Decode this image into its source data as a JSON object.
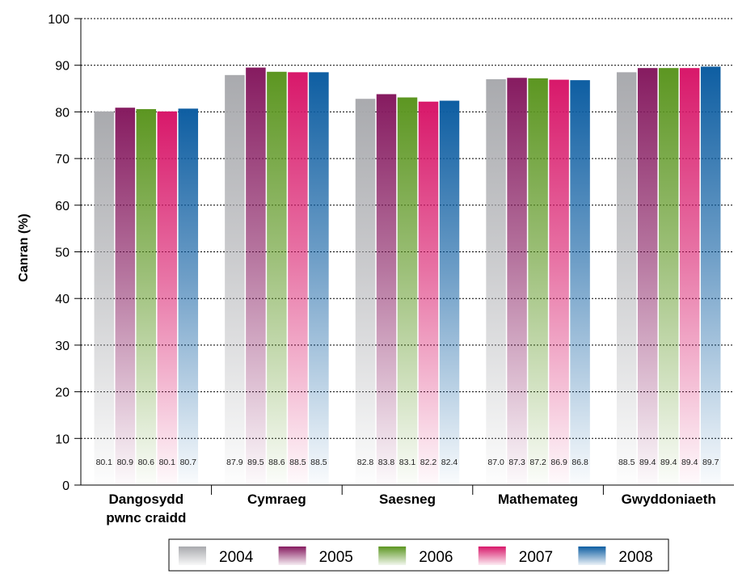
{
  "chart_data": {
    "type": "bar",
    "ylabel": "Canran (%)",
    "xlabel": "",
    "ylim": [
      0,
      100
    ],
    "yticks": [
      0,
      10,
      20,
      30,
      40,
      50,
      60,
      70,
      80,
      90,
      100
    ],
    "grid": true,
    "legend_position": "bottom-center",
    "categories": [
      [
        "Dangosydd",
        "pwnc craidd"
      ],
      [
        "Cymraeg"
      ],
      [
        "Saesneg"
      ],
      [
        "Mathemateg"
      ],
      [
        "Gwyddoniaeth"
      ]
    ],
    "series": [
      {
        "name": "2004",
        "color": "#a9aaae",
        "values": [
          80.1,
          87.9,
          82.8,
          87.0,
          88.5
        ],
        "labels": [
          "80.1",
          "87.9",
          "82.8",
          "87.0",
          "88.5"
        ]
      },
      {
        "name": "2005",
        "color": "#861b60",
        "values": [
          80.9,
          89.5,
          83.8,
          87.3,
          89.4
        ],
        "labels": [
          "80.9",
          "89.5",
          "83.8",
          "87.3",
          "89.4"
        ]
      },
      {
        "name": "2006",
        "color": "#5c9621",
        "values": [
          80.6,
          88.6,
          83.1,
          87.2,
          89.4
        ],
        "labels": [
          "80.6",
          "88.6",
          "83.1",
          "87.2",
          "89.4"
        ]
      },
      {
        "name": "2007",
        "color": "#d8186a",
        "values": [
          80.1,
          88.5,
          82.2,
          86.9,
          89.4
        ],
        "labels": [
          "80.1",
          "88.5",
          "82.2",
          "86.9",
          "89.4"
        ]
      },
      {
        "name": "2008",
        "color": "#0e5ea2",
        "values": [
          80.7,
          88.5,
          82.4,
          86.8,
          89.7
        ],
        "labels": [
          "80.7",
          "88.5",
          "82.4",
          "86.8",
          "89.7"
        ]
      }
    ]
  }
}
